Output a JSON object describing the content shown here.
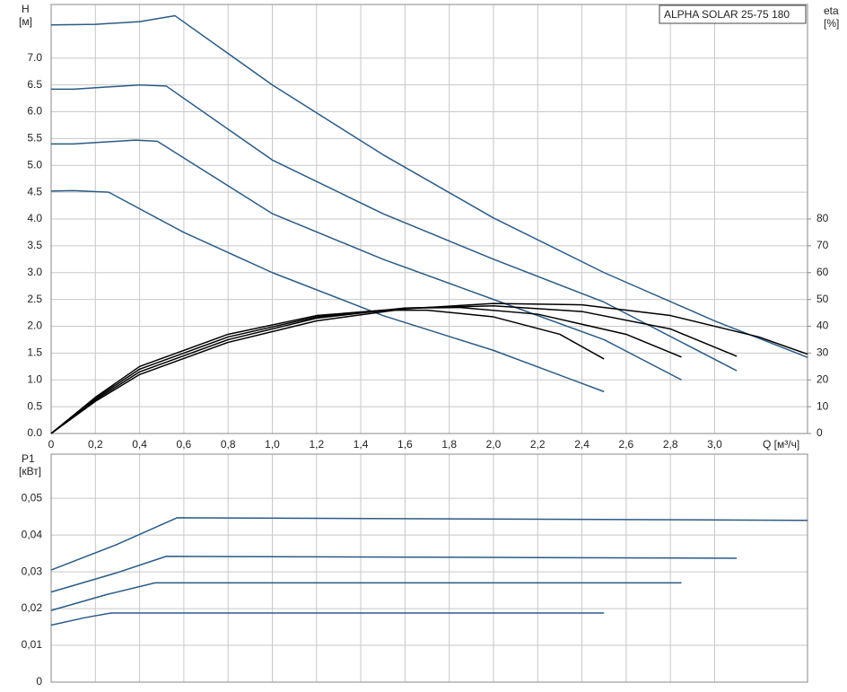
{
  "chart_data": [
    {
      "type": "line",
      "title": "ALPHA SOLAR 25-75  180",
      "y_label": "H",
      "y_unit": "[м]",
      "y2_label": "eta",
      "y2_unit": "[%]",
      "x_label": "Q [м³/ч]",
      "xlim": [
        0,
        3.42
      ],
      "ylim": [
        0,
        8
      ],
      "y2lim": [
        0,
        160
      ],
      "grid": true,
      "show_xtick_labels": true,
      "xticks": [
        0,
        {
          "value": 0.2,
          "label": "0,2"
        },
        {
          "value": 0.4,
          "label": "0,4"
        },
        {
          "value": 0.6,
          "label": "0,6"
        },
        {
          "value": 0.8,
          "label": "0,8"
        },
        {
          "value": 1.0,
          "label": "1,0"
        },
        {
          "value": 1.2,
          "label": "1,2"
        },
        {
          "value": 1.4,
          "label": "1,4"
        },
        {
          "value": 1.6,
          "label": "1,6"
        },
        {
          "value": 1.8,
          "label": "1,8"
        },
        {
          "value": 2.0,
          "label": "2,0"
        },
        {
          "value": 2.2,
          "label": "2,2"
        },
        {
          "value": 2.4,
          "label": "2,4"
        },
        {
          "value": 2.6,
          "label": "2,6"
        },
        {
          "value": 2.8,
          "label": "2,8"
        },
        {
          "value": 3.0,
          "label": "3,0"
        }
      ],
      "yticks": [
        {
          "value": 0,
          "label": "0.0"
        },
        0.5,
        {
          "value": 1,
          "label": "1.0"
        },
        1.5,
        {
          "value": 2,
          "label": "2.0"
        },
        2.5,
        {
          "value": 3,
          "label": "3.0"
        },
        3.5,
        {
          "value": 4,
          "label": "4.0"
        },
        4.5,
        {
          "value": 5,
          "label": "5.0"
        },
        5.5,
        {
          "value": 6,
          "label": "6.0"
        },
        6.5,
        {
          "value": 7,
          "label": "7.0"
        }
      ],
      "y2ticks": [
        0,
        10,
        20,
        30,
        40,
        50,
        60,
        70,
        80
      ],
      "series": [
        {
          "color": "#2b5a86",
          "x": [
            0,
            0.2,
            0.4,
            0.56,
            1.0,
            1.5,
            2.0,
            2.5,
            3.0,
            3.42
          ],
          "values": [
            7.62,
            7.63,
            7.68,
            7.79,
            6.5,
            5.2,
            4.02,
            3.0,
            2.1,
            1.42
          ]
        },
        {
          "color": "#2b5a86",
          "x": [
            0,
            0.1,
            0.4,
            0.52,
            1.0,
            1.5,
            2.0,
            2.5,
            3.1
          ],
          "values": [
            6.42,
            6.42,
            6.5,
            6.48,
            5.1,
            4.1,
            3.25,
            2.45,
            1.17
          ]
        },
        {
          "color": "#2b5a86",
          "x": [
            0,
            0.1,
            0.38,
            0.48,
            1.0,
            1.5,
            2.0,
            2.5,
            2.85
          ],
          "values": [
            5.4,
            5.4,
            5.47,
            5.45,
            4.1,
            3.25,
            2.5,
            1.75,
            1.0
          ]
        },
        {
          "color": "#2b5a86",
          "x": [
            0,
            0.1,
            0.26,
            0.6,
            1.0,
            1.5,
            2.0,
            2.5
          ],
          "values": [
            4.52,
            4.53,
            4.5,
            3.75,
            3.0,
            2.2,
            1.55,
            0.78
          ]
        },
        {
          "color": "#000000",
          "axis": "y2",
          "x": [
            0,
            0.2,
            0.4,
            0.8,
            1.2,
            1.6,
            2.0,
            2.4,
            2.8,
            3.2,
            3.42
          ],
          "values": [
            0,
            12,
            22,
            34,
            42,
            46.5,
            48.5,
            48,
            44,
            36,
            29.6
          ]
        },
        {
          "color": "#000000",
          "axis": "y2",
          "x": [
            0,
            0.2,
            0.4,
            0.8,
            1.2,
            1.6,
            2.0,
            2.4,
            2.8,
            3.1
          ],
          "values": [
            0,
            12.5,
            23,
            35,
            43,
            46.8,
            47.6,
            45.5,
            39,
            28.8
          ]
        },
        {
          "color": "#000000",
          "axis": "y2",
          "x": [
            0,
            0.2,
            0.4,
            0.8,
            1.2,
            1.6,
            1.85,
            2.2,
            2.6,
            2.85
          ],
          "values": [
            0,
            13,
            24,
            36,
            43.5,
            46.8,
            47,
            44.5,
            37,
            28.5
          ]
        },
        {
          "color": "#000000",
          "axis": "y2",
          "x": [
            0,
            0.2,
            0.4,
            0.8,
            1.2,
            1.5,
            1.7,
            2.0,
            2.3,
            2.5
          ],
          "values": [
            0,
            13.5,
            25,
            37,
            44,
            46,
            46,
            43.5,
            37,
            27.8
          ]
        }
      ]
    },
    {
      "type": "line",
      "y_label": "P1",
      "y_unit": "[кВт]",
      "xlim": [
        0,
        3.42
      ],
      "ylim": [
        0,
        0.062
      ],
      "grid": true,
      "show_xtick_labels": false,
      "xticks": [
        0,
        0.2,
        0.4,
        0.6,
        0.8,
        1.0,
        1.2,
        1.4,
        1.6,
        1.8,
        2.0,
        2.2,
        2.4,
        2.6,
        2.8,
        3.0
      ],
      "yticks": [
        0,
        {
          "value": 0.01,
          "label": "0,01"
        },
        {
          "value": 0.02,
          "label": "0,02"
        },
        {
          "value": 0.03,
          "label": "0,03"
        },
        {
          "value": 0.04,
          "label": "0,04"
        },
        {
          "value": 0.05,
          "label": "0,05"
        }
      ],
      "series": [
        {
          "color": "#2b5a86",
          "x": [
            0,
            0.3,
            0.57,
            3.42
          ],
          "values": [
            0.0305,
            0.0375,
            0.0447,
            0.044
          ]
        },
        {
          "color": "#2b5a86",
          "x": [
            0,
            0.3,
            0.52,
            3.1
          ],
          "values": [
            0.0245,
            0.0298,
            0.0342,
            0.0337
          ]
        },
        {
          "color": "#2b5a86",
          "x": [
            0,
            0.25,
            0.47,
            2.85
          ],
          "values": [
            0.0195,
            0.0238,
            0.027,
            0.027
          ]
        },
        {
          "color": "#2b5a86",
          "x": [
            0,
            0.15,
            0.27,
            2.5
          ],
          "values": [
            0.0155,
            0.0175,
            0.0188,
            0.0188
          ]
        }
      ]
    }
  ]
}
